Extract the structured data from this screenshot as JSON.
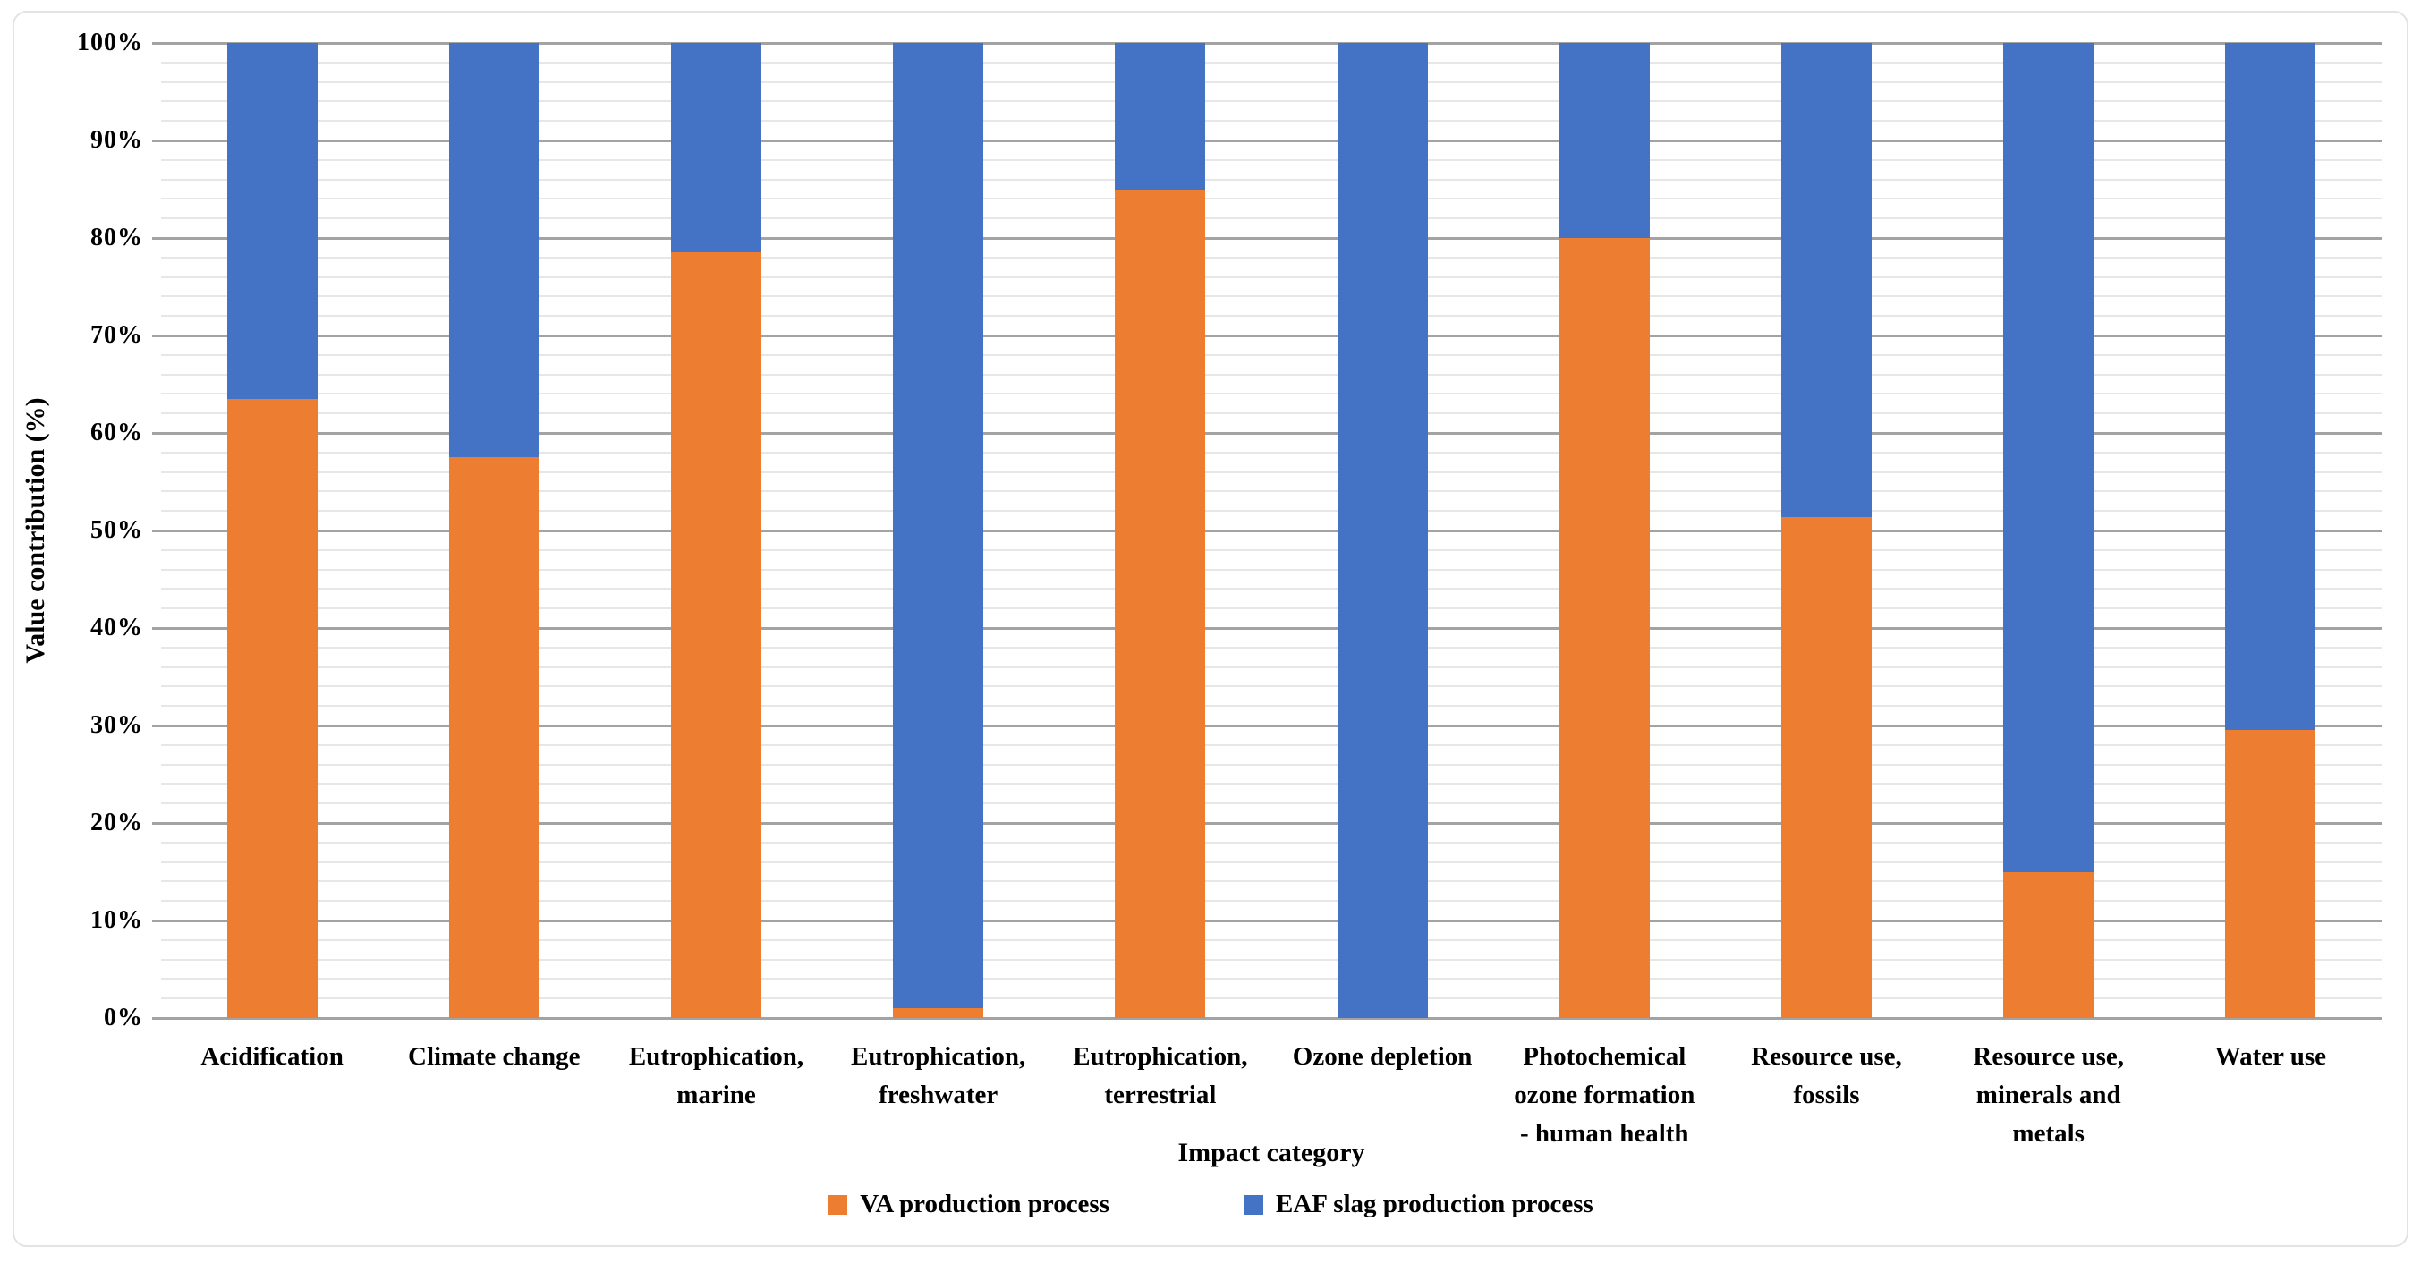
{
  "chart_data": {
    "type": "bar",
    "stacked": true,
    "stacked_mode": "percent",
    "title": "",
    "xlabel": "Impact category",
    "ylabel": "Value contribution (%)",
    "ylim": [
      0,
      100
    ],
    "y_major_interval": 10,
    "y_minor_interval": 2,
    "grid": "horizontal major+minor",
    "legend_position": "bottom-center",
    "y_ticks": [
      "0%",
      "10%",
      "20%",
      "30%",
      "40%",
      "50%",
      "60%",
      "70%",
      "80%",
      "90%",
      "100%"
    ],
    "categories": [
      "Acidification",
      "Climate change",
      "Eutrophication, marine",
      "Eutrophication, freshwater",
      "Eutrophication, terrestrial",
      "Ozone depletion",
      "Photochemical ozone formation - human health",
      "Resource use, fossils",
      "Resource use, minerals and metals",
      "Water use"
    ],
    "category_label_lines": [
      [
        "Acidification"
      ],
      [
        "Climate change"
      ],
      [
        "Eutrophication,",
        "marine"
      ],
      [
        "Eutrophication,",
        "freshwater"
      ],
      [
        "Eutrophication,",
        "terrestrial"
      ],
      [
        "Ozone depletion"
      ],
      [
        "Photochemical",
        "ozone formation",
        "- human health"
      ],
      [
        "Resource use,",
        "fossils"
      ],
      [
        "Resource use,",
        "minerals and",
        "metals"
      ],
      [
        "Water use"
      ]
    ],
    "series": [
      {
        "name": "VA production process",
        "color": "#ED7D31",
        "values": [
          63.5,
          57.5,
          78.5,
          1,
          85,
          0,
          80,
          51.4,
          15,
          29.5
        ]
      },
      {
        "name": "EAF slag production process",
        "color": "#4472C4",
        "values": [
          36.5,
          42.5,
          21.5,
          99,
          15,
          100,
          20,
          48.6,
          85,
          70.5
        ]
      }
    ]
  },
  "colors": {
    "major_gridline": "#A3A3A3",
    "minor_gridline": "#E7E7E7",
    "text": "#000000",
    "chart_border": "#E3E3E3",
    "background": "#FFFFFF"
  }
}
